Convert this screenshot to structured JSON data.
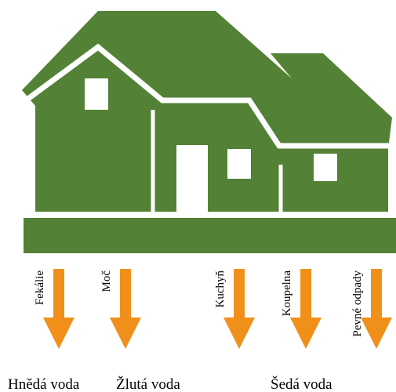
{
  "flows": [
    {
      "label": "Fekálie"
    },
    {
      "label": "Moč"
    },
    {
      "label": "Kuchyň"
    },
    {
      "label": "Koupelna"
    },
    {
      "label": "Pevné odpady"
    }
  ],
  "water_types": [
    "Hnědá voda",
    "Žlutá voda",
    "Šedá voda"
  ]
}
